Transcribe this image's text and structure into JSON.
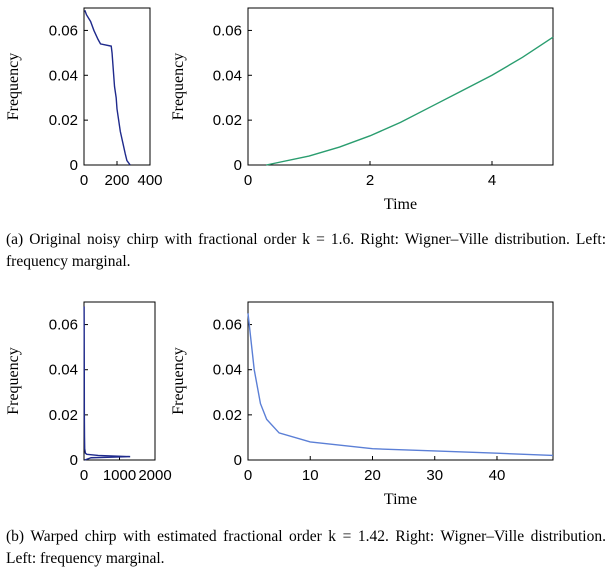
{
  "chart_data": [
    {
      "type": "line",
      "ylabel": "Frequency",
      "xlim": [
        0,
        400
      ],
      "xticks": [
        0,
        200,
        400
      ],
      "ylim": [
        0,
        0.07
      ],
      "yticks": [
        0,
        0.02,
        0.04,
        0.06
      ],
      "series": [
        {
          "color": "#1f2a8c",
          "x": [
            280,
            260,
            250,
            235,
            220,
            210,
            200,
            195,
            185,
            180,
            175,
            170,
            165,
            100,
            85,
            60,
            40,
            15,
            5
          ],
          "values": [
            0,
            0.002,
            0.005,
            0.01,
            0.015,
            0.02,
            0.025,
            0.03,
            0.035,
            0.04,
            0.045,
            0.05,
            0.053,
            0.054,
            0.056,
            0.06,
            0.064,
            0.067,
            0.069
          ]
        }
      ]
    },
    {
      "type": "line",
      "ylabel": "Frequency",
      "xlabel": "Time",
      "xlim": [
        0,
        5
      ],
      "xticks": [
        0,
        2,
        4
      ],
      "ylim": [
        0,
        0.07
      ],
      "yticks": [
        0,
        0.02,
        0.04,
        0.06
      ],
      "series": [
        {
          "color": "#2a9d6f",
          "x": [
            0.3,
            1,
            1.5,
            2,
            2.5,
            3,
            3.5,
            4,
            4.5,
            5
          ],
          "values": [
            0,
            0.004,
            0.008,
            0.013,
            0.019,
            0.026,
            0.033,
            0.04,
            0.048,
            0.057
          ]
        }
      ]
    },
    {
      "type": "line",
      "ylabel": "Frequency",
      "xlim": [
        0,
        2000
      ],
      "xticks": [
        0,
        1000,
        2000
      ],
      "ylim": [
        0,
        0.07
      ],
      "yticks": [
        0,
        0.02,
        0.04,
        0.06
      ],
      "series": [
        {
          "color": "#1f2a8c",
          "x": [
            20,
            200,
            1300,
            400,
            80,
            40,
            20,
            15,
            10,
            8,
            5,
            3
          ],
          "values": [
            0,
            0.001,
            0.0015,
            0.002,
            0.0025,
            0.003,
            0.005,
            0.01,
            0.02,
            0.04,
            0.06,
            0.068
          ]
        }
      ]
    },
    {
      "type": "line",
      "ylabel": "Frequency",
      "xlabel": "Time",
      "xlim": [
        0,
        49
      ],
      "xticks": [
        0,
        10,
        20,
        30,
        40
      ],
      "ylim": [
        0,
        0.07
      ],
      "yticks": [
        0,
        0.02,
        0.04,
        0.06
      ],
      "series": [
        {
          "color": "#5b7fd6",
          "x": [
            0,
            1,
            2,
            3,
            5,
            10,
            20,
            30,
            40,
            49
          ],
          "values": [
            0.065,
            0.04,
            0.025,
            0.018,
            0.012,
            0.008,
            0.005,
            0.004,
            0.003,
            0.002
          ]
        }
      ]
    }
  ],
  "captions": [
    "(a) Original noisy chirp with fractional order k = 1.6. Right: Wigner–Ville distribution. Left: frequency marginal.",
    "(b) Warped chirp with estimated fractional order k = 1.42.  Right: Wigner–Ville distribution. Left: frequency marginal."
  ]
}
